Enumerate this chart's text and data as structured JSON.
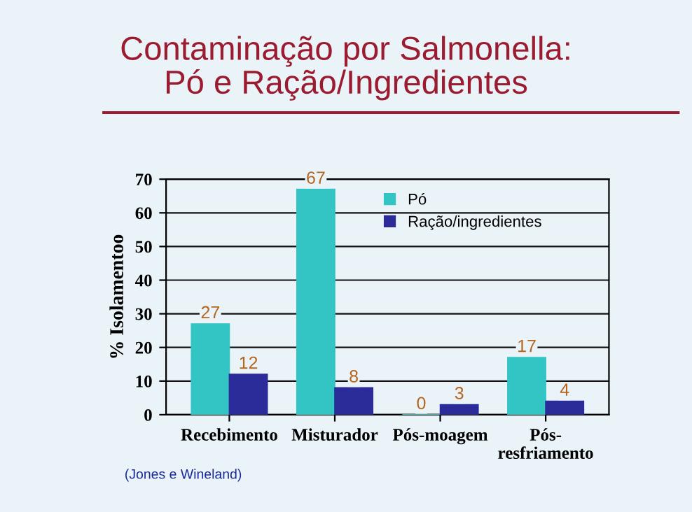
{
  "chart_data": {
    "type": "bar",
    "title": "Contaminação por Salmonella:\nPó e Ração/Ingredientes",
    "ylabel": "% Isolamentoo",
    "categories": [
      "Recebimento",
      "Misturador",
      "Pós-moagem",
      "Pós-\nresfriamento"
    ],
    "series": [
      {
        "name": "Pó",
        "color": "#33c4c4",
        "values": [
          27,
          67,
          0,
          17
        ]
      },
      {
        "name": "Ração/ingredientes",
        "color": "#2b2b99",
        "values": [
          12,
          8,
          3,
          4
        ]
      }
    ],
    "ylim": [
      0,
      70
    ],
    "yticks": [
      0,
      10,
      20,
      30,
      40,
      50,
      60,
      70
    ],
    "grid": "y",
    "legend": "top right",
    "data_labels": true,
    "annotations": [
      "(Jones e Wineland)"
    ]
  }
}
